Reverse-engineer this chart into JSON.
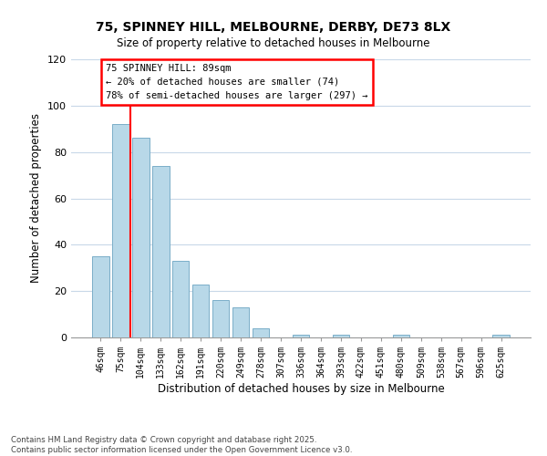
{
  "title": "75, SPINNEY HILL, MELBOURNE, DERBY, DE73 8LX",
  "subtitle": "Size of property relative to detached houses in Melbourne",
  "xlabel": "Distribution of detached houses by size in Melbourne",
  "ylabel": "Number of detached properties",
  "bar_color": "#B8D8E8",
  "bar_edge_color": "#7AAEC8",
  "background_color": "#FFFFFF",
  "grid_color": "#C8D8E8",
  "categories": [
    "46sqm",
    "75sqm",
    "104sqm",
    "133sqm",
    "162sqm",
    "191sqm",
    "220sqm",
    "249sqm",
    "278sqm",
    "307sqm",
    "336sqm",
    "364sqm",
    "393sqm",
    "422sqm",
    "451sqm",
    "480sqm",
    "509sqm",
    "538sqm",
    "567sqm",
    "596sqm",
    "625sqm"
  ],
  "values": [
    35,
    92,
    86,
    74,
    33,
    23,
    16,
    13,
    4,
    0,
    1,
    0,
    1,
    0,
    0,
    1,
    0,
    0,
    0,
    0,
    1
  ],
  "ylim": [
    0,
    120
  ],
  "yticks": [
    0,
    20,
    40,
    60,
    80,
    100,
    120
  ],
  "annotation_title": "75 SPINNEY HILL: 89sqm",
  "annotation_line1": "← 20% of detached houses are smaller (74)",
  "annotation_line2": "78% of semi-detached houses are larger (297) →",
  "footer_line1": "Contains HM Land Registry data © Crown copyright and database right 2025.",
  "footer_line2": "Contains public sector information licensed under the Open Government Licence v3.0."
}
